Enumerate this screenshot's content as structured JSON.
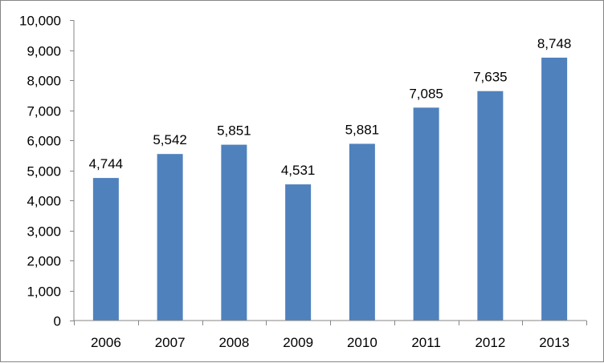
{
  "chart_data": {
    "type": "bar",
    "title": "",
    "xlabel": "",
    "ylabel": "",
    "categories": [
      "2006",
      "2007",
      "2008",
      "2009",
      "2010",
      "2011",
      "2012",
      "2013"
    ],
    "values": [
      4744,
      5542,
      5851,
      4531,
      5881,
      7085,
      7635,
      8748
    ],
    "value_labels": [
      "4,744",
      "5,542",
      "5,851",
      "4,531",
      "5,881",
      "7,085",
      "7,635",
      "8,748"
    ],
    "ylim": [
      0,
      10000
    ],
    "yticks": [
      0,
      1000,
      2000,
      3000,
      4000,
      5000,
      6000,
      7000,
      8000,
      9000,
      10000
    ],
    "ytick_labels": [
      "0",
      "1,000",
      "2,000",
      "3,000",
      "4,000",
      "5,000",
      "6,000",
      "7,000",
      "8,000",
      "9,000",
      "10,000"
    ],
    "grid": false,
    "legend": "none",
    "bar_color": "#4F81BD",
    "axis_color": "#868686"
  }
}
